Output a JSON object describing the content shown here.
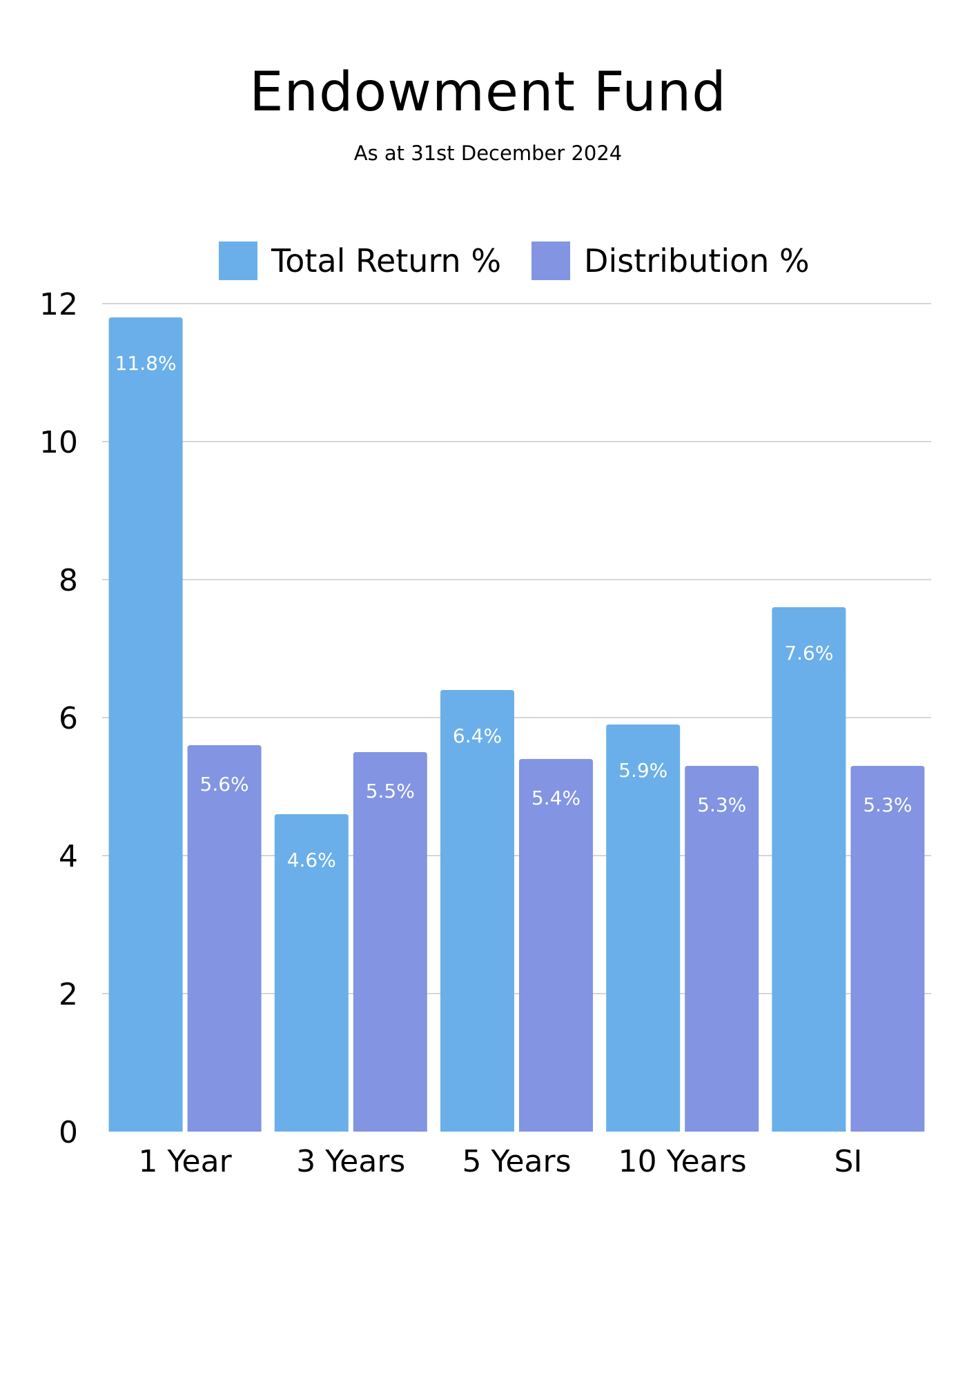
{
  "chart_data": {
    "type": "bar",
    "title": "Endowment Fund",
    "subtitle": "As at 31st December 2024",
    "categories": [
      "1 Year",
      "3 Years",
      "5 Years",
      "10 Years",
      "SI"
    ],
    "series": [
      {
        "name": "Total Return %",
        "color": "#6aafe9",
        "values": [
          11.8,
          4.6,
          6.4,
          5.9,
          7.6
        ],
        "labels": [
          "11.8%",
          "4.6%",
          "6.4%",
          "5.9%",
          "7.6%"
        ]
      },
      {
        "name": "Distribution %",
        "color": "#8294e2",
        "values": [
          5.6,
          5.5,
          5.4,
          5.3,
          5.3
        ],
        "labels": [
          "5.6%",
          "5.5%",
          "5.4%",
          "5.3%",
          "5.3%"
        ]
      }
    ],
    "ylim": [
      0,
      12
    ],
    "yticks": [
      "0",
      "2",
      "4",
      "6",
      "8",
      "10",
      "12"
    ],
    "grid": true,
    "legend_position": "top"
  }
}
